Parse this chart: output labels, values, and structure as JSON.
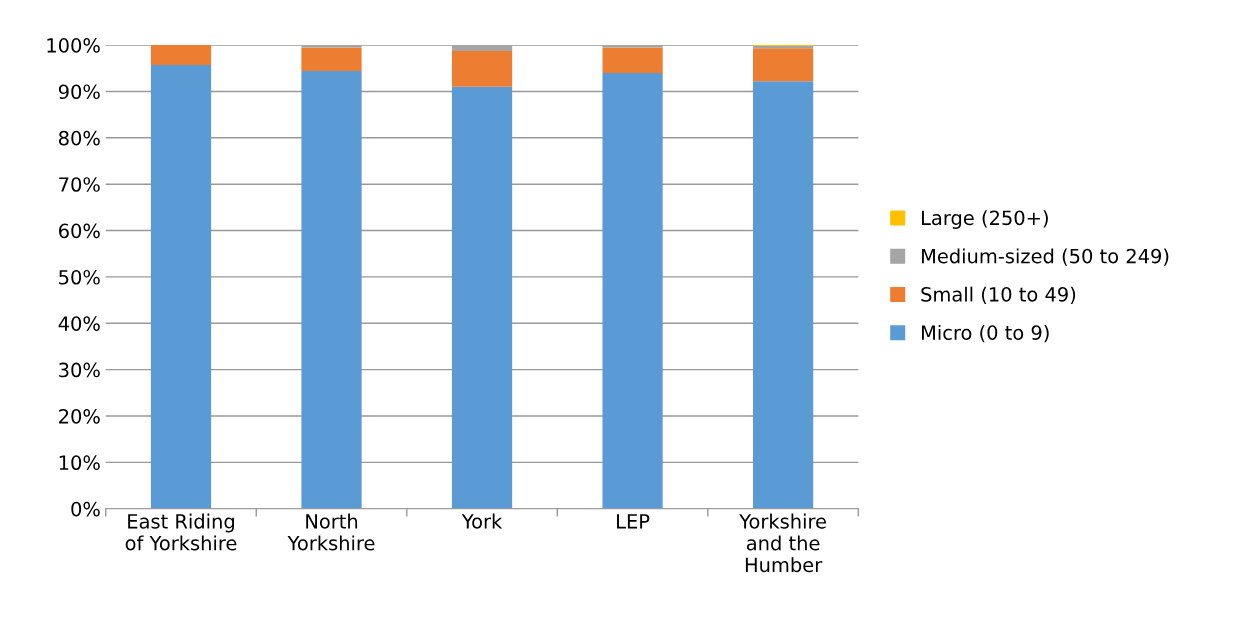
{
  "chart_data": {
    "type": "bar",
    "stacked": true,
    "categories": [
      "East Riding\nof Yorkshire",
      "North\nYorkshire",
      "York",
      "LEP",
      "Yorkshire\nand the\nHumber"
    ],
    "series": [
      {
        "name": "Micro (0 to 9)",
        "color": "#5b9bd5",
        "values": [
          95.7,
          94.4,
          91.0,
          94.0,
          92.2
        ]
      },
      {
        "name": "Small (10 to 49)",
        "color": "#ed7d31",
        "values": [
          4.3,
          5.1,
          7.7,
          5.5,
          7.1
        ]
      },
      {
        "name": "Medium-sized (50 to 249)",
        "color": "#a5a5a5",
        "values": [
          0,
          0.5,
          1.3,
          0.5,
          0.5
        ]
      },
      {
        "name": "Large (250+)",
        "color": "#ffc000",
        "values": [
          0,
          0,
          0,
          0,
          0.2
        ]
      }
    ],
    "ylim": [
      0,
      100
    ],
    "yticks": [
      {
        "value": 0,
        "label": "0%"
      },
      {
        "value": 10,
        "label": "10%"
      },
      {
        "value": 20,
        "label": "20%"
      },
      {
        "value": 30,
        "label": "30%"
      },
      {
        "value": 40,
        "label": "40%"
      },
      {
        "value": 50,
        "label": "50%"
      },
      {
        "value": 60,
        "label": "60%"
      },
      {
        "value": 70,
        "label": "70%"
      },
      {
        "value": 80,
        "label": "80%"
      },
      {
        "value": 90,
        "label": "90%"
      },
      {
        "value": 100,
        "label": "100%"
      }
    ],
    "grid": "y",
    "legend": "right"
  }
}
